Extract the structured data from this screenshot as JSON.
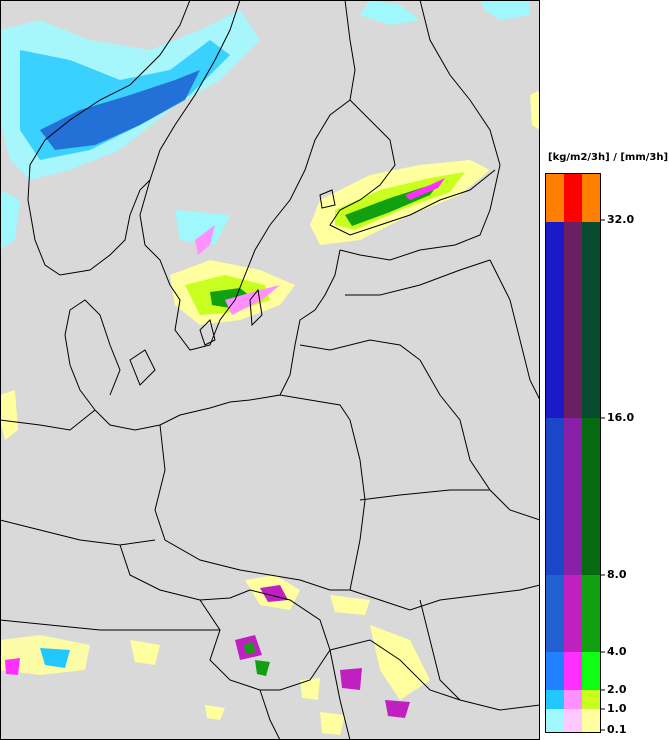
{
  "legend": {
    "unit_label": "[kg/m2/3h] / [mm/3h]",
    "ticks": [
      "0.1",
      "1.0",
      "2.0",
      "4.0",
      "8.0",
      "16.0",
      "32.0"
    ],
    "bands": [
      {
        "colors": [
          "#ff8000",
          "#ff0000",
          "#ff8000"
        ]
      },
      {
        "colors": [
          "#1a1ac8",
          "#6a2060",
          "#064a30"
        ]
      },
      {
        "colors": [
          "#1a46c8",
          "#8a20a8",
          "#056a10"
        ]
      },
      {
        "colors": [
          "#2060d0",
          "#c020c0",
          "#10a010"
        ]
      },
      {
        "colors": [
          "#2080ff",
          "#ff30ff",
          "#10ff10"
        ]
      },
      {
        "colors": [
          "#20c8ff",
          "#ff90ff",
          "#c8ff20"
        ]
      },
      {
        "colors": [
          "#a0f8ff",
          "#ffc8ff",
          "#ffffa0"
        ]
      }
    ]
  },
  "map": {
    "background": "#d9d9d9",
    "border_color": "#000000",
    "precip_colors": {
      "snow_light": "#a0f8ff",
      "snow_mid": "#20c8ff",
      "snow_heavy": "#2060d0",
      "rain_light": "#ffffa0",
      "rain_mid": "#c8ff20",
      "rain_heavy": "#10a010",
      "mixed": "#ff30ff"
    }
  }
}
